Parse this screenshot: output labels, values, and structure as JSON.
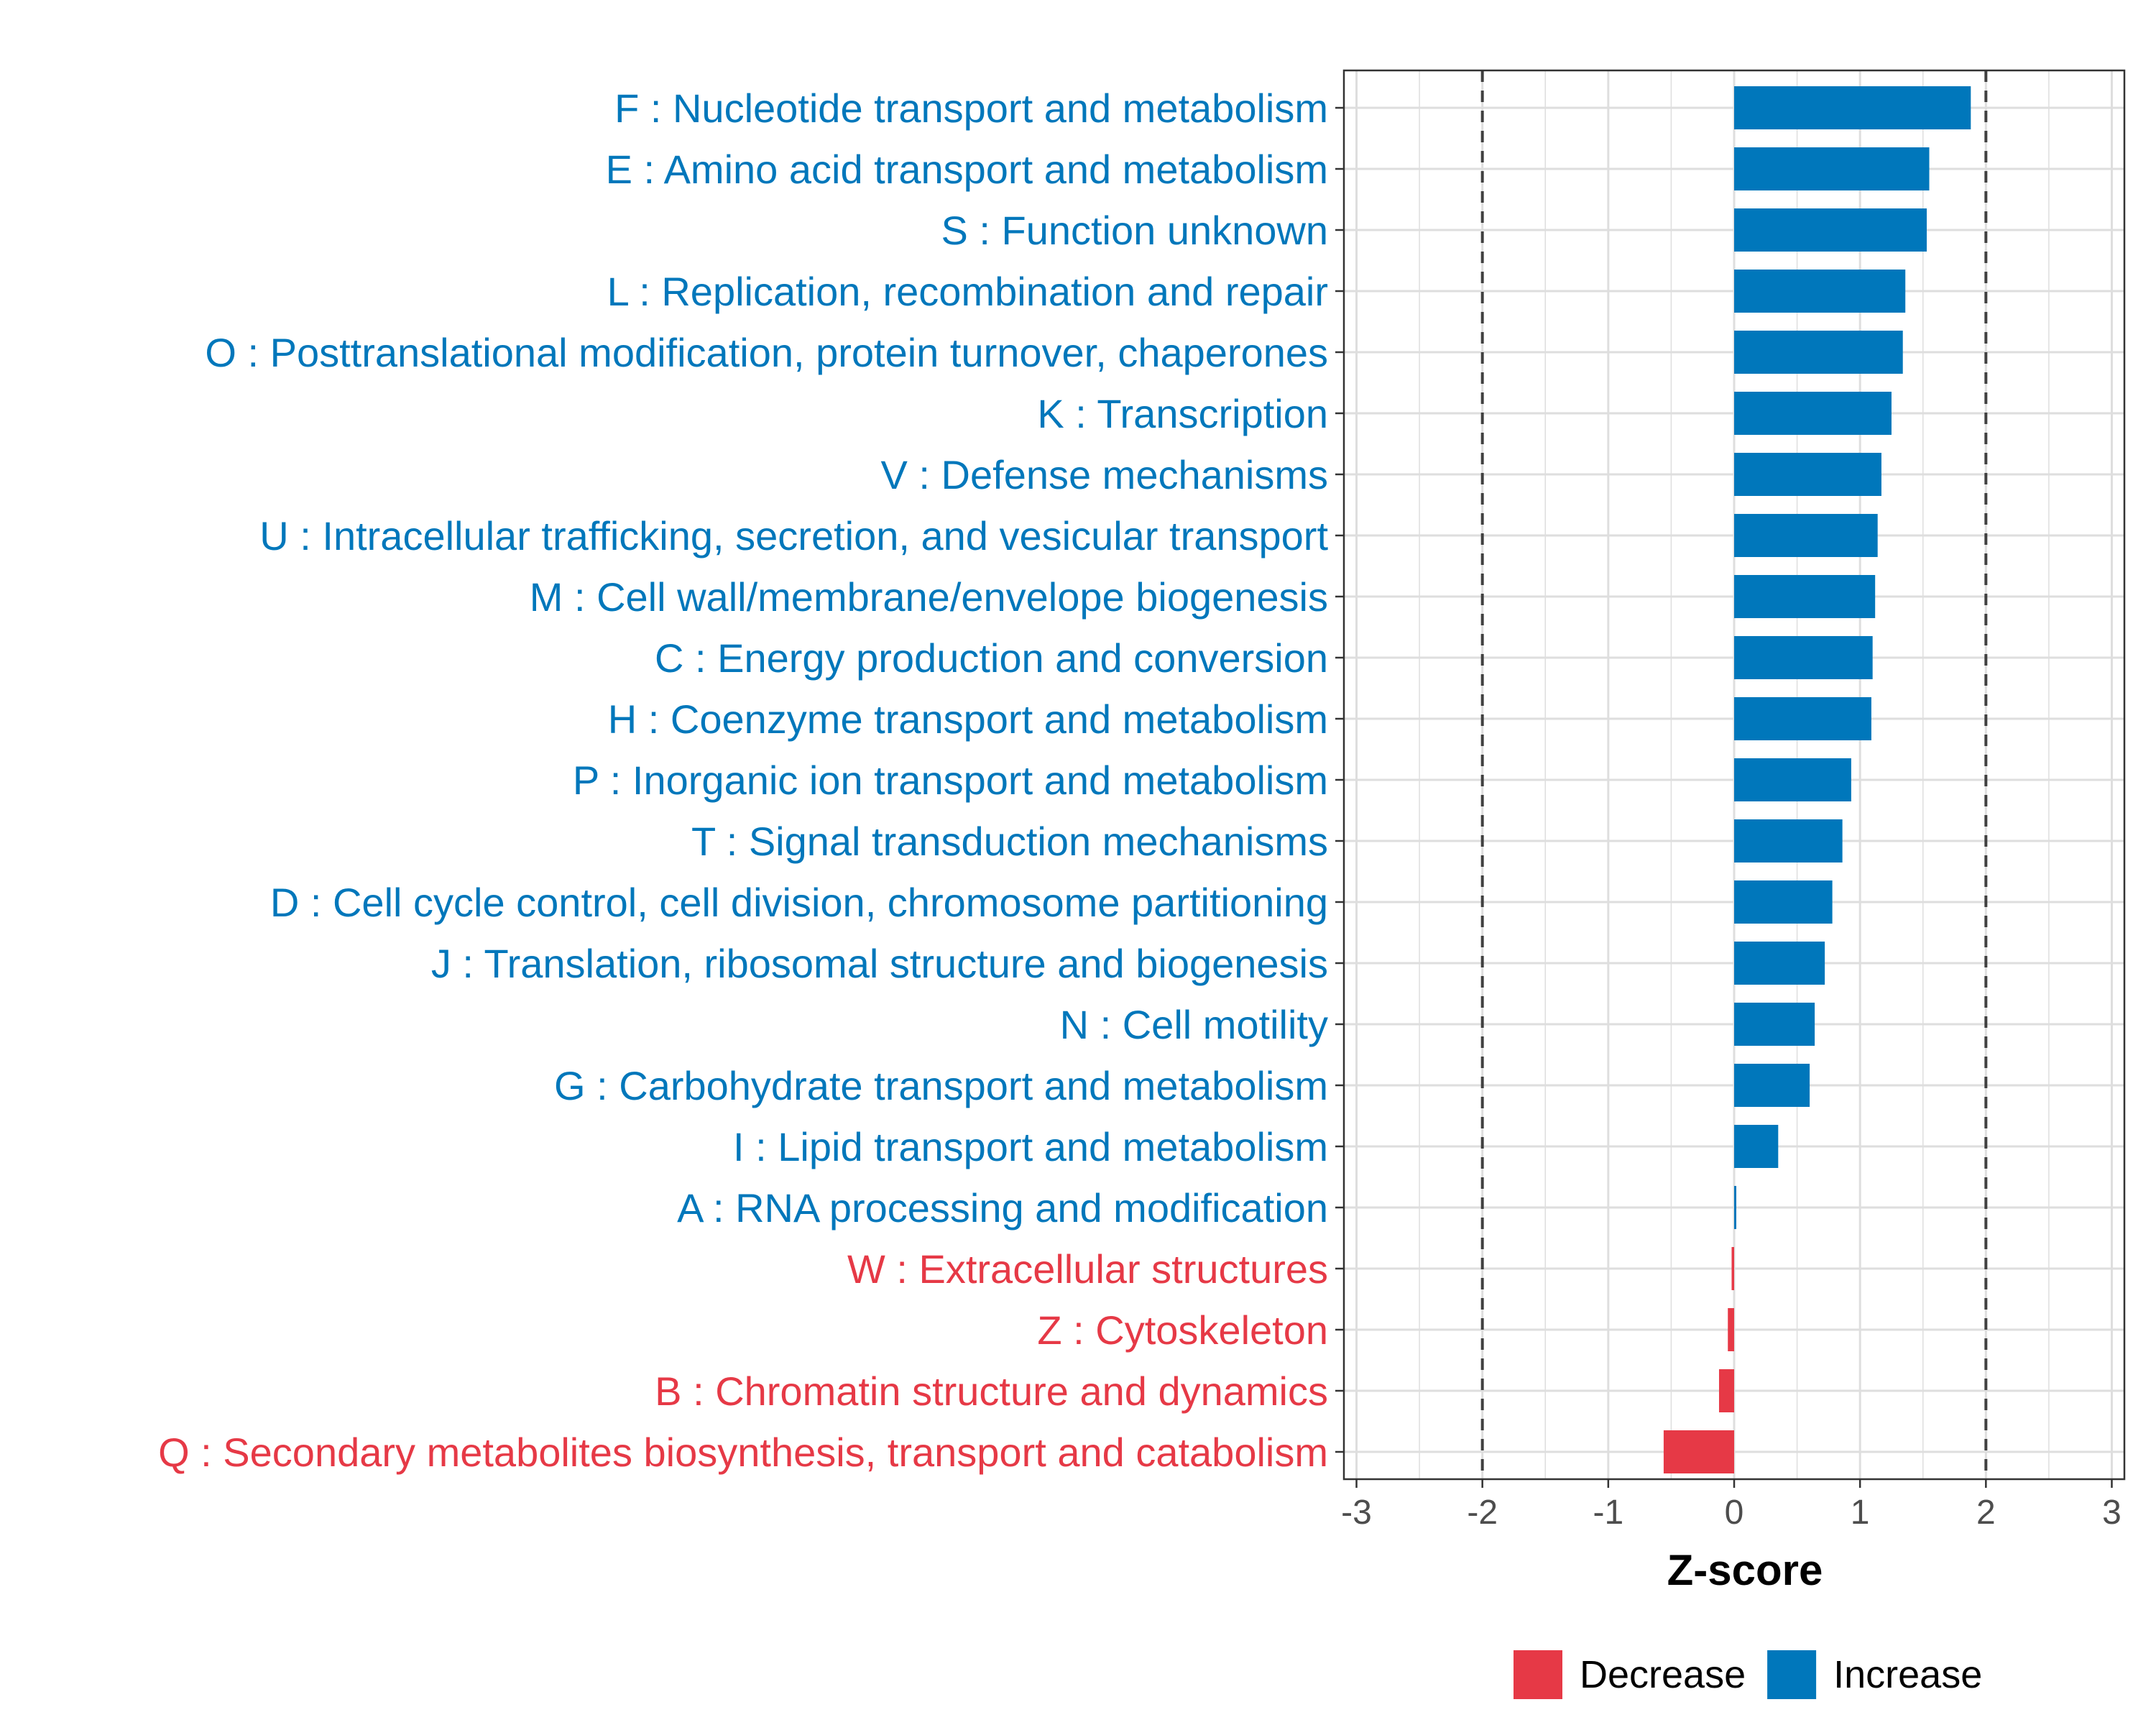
{
  "chart_data": {
    "type": "bar",
    "orientation": "horizontal",
    "xlabel": "Z-score",
    "xlim": [
      -3.1,
      3.1
    ],
    "xticks": [
      -3,
      -2,
      -1,
      0,
      1,
      2,
      3
    ],
    "reference_lines": [
      -2,
      2
    ],
    "grid": true,
    "legend_position": "bottom",
    "colors": {
      "Increase": "#0077bb",
      "Decrease": "#e63946",
      "grid": "#dedede",
      "reference": "#404040"
    },
    "legend": [
      {
        "name": "Decrease",
        "color": "#e63946"
      },
      {
        "name": "Increase",
        "color": "#0077bb"
      }
    ],
    "categories": [
      "F : Nucleotide transport and metabolism",
      "E : Amino acid transport and metabolism",
      "S : Function unknown",
      "L : Replication, recombination and repair",
      "O : Posttranslational modification, protein turnover, chaperones",
      "K : Transcription",
      "V : Defense mechanisms",
      "U : Intracellular trafficking, secretion, and vesicular transport",
      "M : Cell wall/membrane/envelope biogenesis",
      "C : Energy production and conversion",
      "H : Coenzyme transport and metabolism",
      "P : Inorganic ion transport and metabolism",
      "T : Signal transduction mechanisms",
      "D : Cell cycle control, cell division, chromosome partitioning",
      "J : Translation, ribosomal structure and biogenesis",
      "N : Cell motility",
      "G : Carbohydrate transport and metabolism",
      "I : Lipid transport and metabolism",
      "A : RNA processing and modification",
      "W : Extracellular structures",
      "Z : Cytoskeleton",
      "B : Chromatin structure and dynamics",
      "Q : Secondary metabolites biosynthesis, transport and catabolism"
    ],
    "values": [
      1.88,
      1.55,
      1.53,
      1.36,
      1.34,
      1.25,
      1.17,
      1.14,
      1.12,
      1.1,
      1.09,
      0.93,
      0.86,
      0.78,
      0.72,
      0.64,
      0.6,
      0.35,
      0.01,
      -0.02,
      -0.05,
      -0.12,
      -0.56
    ],
    "groups": [
      "Increase",
      "Increase",
      "Increase",
      "Increase",
      "Increase",
      "Increase",
      "Increase",
      "Increase",
      "Increase",
      "Increase",
      "Increase",
      "Increase",
      "Increase",
      "Increase",
      "Increase",
      "Increase",
      "Increase",
      "Increase",
      "Increase",
      "Decrease",
      "Decrease",
      "Decrease",
      "Decrease"
    ]
  }
}
